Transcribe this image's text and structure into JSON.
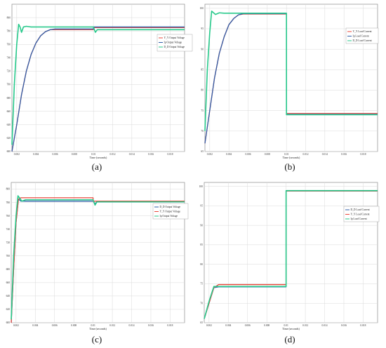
{
  "captions": [
    "(a)",
    "(b)",
    "(c)",
    "(d)"
  ],
  "colors": {
    "red": "#e8473a",
    "blue": "#2f5ea8",
    "green": "#27c98b",
    "teal": "#4fb3b0"
  },
  "chart_data": [
    {
      "type": "line",
      "panel": "a",
      "xlabel": "Time (seconds)",
      "ylabel": "",
      "xlim": [
        0.0015,
        0.0195
      ],
      "ylim": [
        600,
        820
      ],
      "xticks": [
        0.002,
        0.004,
        0.006,
        0.008,
        0.01,
        0.012,
        0.014,
        0.016,
        0.018
      ],
      "xtick_labels": [
        "0.002",
        "0.004",
        "0.006",
        "0.008",
        "0.01",
        "0.012",
        "0.014",
        "0.016",
        "0.018"
      ],
      "yticks": [
        600,
        620,
        640,
        660,
        680,
        700,
        720,
        740,
        760,
        780,
        800
      ],
      "ytick_labels": [
        "600",
        "620",
        "640",
        "660",
        "680",
        "700",
        "720",
        "740",
        "760",
        "780",
        "800"
      ],
      "grid": true,
      "legend": "right",
      "series": [
        {
          "name": "Y_Y Output Voltage",
          "color": "red",
          "x": [
            0.0015,
            0.002,
            0.0025,
            0.003,
            0.0035,
            0.004,
            0.0045,
            0.005,
            0.0055,
            0.006,
            0.0065,
            0.01,
            0.01,
            0.0195
          ],
          "y": [
            600,
            640,
            685,
            720,
            745,
            762,
            773,
            779,
            782,
            782,
            782,
            782,
            785,
            785
          ]
        },
        {
          "name": "Ip Output Voltage",
          "color": "blue",
          "x": [
            0.0015,
            0.002,
            0.0025,
            0.003,
            0.0035,
            0.004,
            0.0045,
            0.005,
            0.0055,
            0.006,
            0.0065,
            0.01,
            0.01,
            0.0195
          ],
          "y": [
            600,
            640,
            685,
            720,
            745,
            762,
            773,
            779,
            782,
            783,
            783,
            783,
            786,
            786
          ]
        },
        {
          "name": "D_D Output Voltage",
          "color": "green",
          "x": [
            0.0015,
            0.00175,
            0.002,
            0.0022,
            0.00235,
            0.0025,
            0.0027,
            0.003,
            0.0035,
            0.004,
            0.006,
            0.01,
            0.0102,
            0.0104,
            0.0195
          ],
          "y": [
            610,
            700,
            760,
            790,
            786,
            778,
            786,
            787,
            786,
            786,
            786,
            786,
            778,
            782,
            782
          ]
        }
      ]
    },
    {
      "type": "line",
      "panel": "b",
      "xlabel": "Time (seconds)",
      "ylabel": "",
      "xlim": [
        0.0015,
        0.0195
      ],
      "ylim": [
        65,
        101
      ],
      "xticks": [
        0.002,
        0.004,
        0.006,
        0.008,
        0.01,
        0.012,
        0.014,
        0.016,
        0.018
      ],
      "xtick_labels": [
        "0.002",
        "0.004",
        "0.006",
        "0.008",
        "0.01",
        "0.012",
        "0.014",
        "0.016",
        "0.018"
      ],
      "yticks": [
        65,
        70,
        75,
        80,
        85,
        90,
        95,
        100
      ],
      "ytick_labels": [
        "65",
        "70",
        "75",
        "80",
        "85",
        "90",
        "95",
        "100"
      ],
      "grid": true,
      "legend": "right",
      "series": [
        {
          "name": "Y_Y Load Current",
          "color": "red",
          "x": [
            0.0015,
            0.002,
            0.0025,
            0.003,
            0.0035,
            0.004,
            0.0045,
            0.005,
            0.0055,
            0.01,
            0.01,
            0.0195
          ],
          "y": [
            67,
            75,
            83,
            89,
            93,
            96,
            97.5,
            98.4,
            98.6,
            98.6,
            74.3,
            74.3
          ]
        },
        {
          "name": "Ip Load Current",
          "color": "blue",
          "x": [
            0.0015,
            0.002,
            0.0025,
            0.003,
            0.0035,
            0.004,
            0.0045,
            0.005,
            0.0055,
            0.01,
            0.01,
            0.0195
          ],
          "y": [
            67,
            75,
            83,
            89,
            93,
            96,
            97.5,
            98.4,
            98.7,
            98.7,
            74.1,
            74.1
          ]
        },
        {
          "name": "D_D Load Current",
          "color": "green",
          "x": [
            0.0015,
            0.00175,
            0.002,
            0.0022,
            0.0024,
            0.0026,
            0.003,
            0.0035,
            0.01,
            0.01,
            0.0195
          ],
          "y": [
            70,
            85,
            94,
            99.3,
            98.9,
            98.5,
            98.9,
            98.8,
            98.8,
            74.0,
            74.0
          ]
        }
      ]
    },
    {
      "type": "line",
      "panel": "c",
      "xlabel": "Time (seconds)",
      "ylabel": "",
      "xlim": [
        0.0015,
        0.0195
      ],
      "ylim": [
        600,
        810
      ],
      "xticks": [
        0.002,
        0.004,
        0.006,
        0.008,
        0.01,
        0.012,
        0.014,
        0.016,
        0.018
      ],
      "xtick_labels": [
        "0.002",
        "0.004",
        "0.006",
        "0.008",
        "0.01",
        "0.012",
        "0.014",
        "0.016",
        "0.018"
      ],
      "yticks": [
        600,
        620,
        640,
        660,
        680,
        700,
        720,
        740,
        760,
        780,
        800
      ],
      "ytick_labels": [
        "600",
        "620",
        "640",
        "660",
        "680",
        "700",
        "720",
        "740",
        "760",
        "780",
        "800"
      ],
      "grid": true,
      "legend": "right",
      "series": [
        {
          "name": "D_D Output Voltage",
          "color": "blue",
          "x": [
            0.0015,
            0.00175,
            0.002,
            0.00225,
            0.0025,
            0.01,
            0.0102,
            0.0104,
            0.0195
          ],
          "y": [
            600,
            680,
            750,
            785,
            782,
            782,
            778,
            781,
            781
          ]
        },
        {
          "name": "Y_Y Output Voltage",
          "color": "red",
          "x": [
            0.0015,
            0.00175,
            0.002,
            0.00225,
            0.0025,
            0.01,
            0.01,
            0.0195
          ],
          "y": [
            600,
            680,
            750,
            785,
            787,
            787,
            782,
            782
          ]
        },
        {
          "name": "Ip Output Voltage",
          "color": "green",
          "x": [
            0.0015,
            0.00175,
            0.002,
            0.0022,
            0.0024,
            0.0026,
            0.003,
            0.01,
            0.0102,
            0.0104,
            0.0195
          ],
          "y": [
            605,
            700,
            760,
            790,
            786,
            782,
            784,
            784,
            776,
            781,
            781
          ]
        }
      ]
    },
    {
      "type": "line",
      "panel": "d",
      "xlabel": "Time (seconds)",
      "ylabel": "",
      "xlim": [
        0.0015,
        0.0195
      ],
      "ylim": [
        65,
        101
      ],
      "xticks": [
        0.002,
        0.004,
        0.006,
        0.008,
        0.01,
        0.012,
        0.014,
        0.016,
        0.018
      ],
      "xtick_labels": [
        "0.002",
        "0.004",
        "0.006",
        "0.008",
        "0.01",
        "0.012",
        "0.014",
        "0.016",
        "0.018"
      ],
      "yticks": [
        65,
        70,
        75,
        80,
        85,
        90,
        95,
        100
      ],
      "ytick_labels": [
        "65",
        "70",
        "75",
        "80",
        "85",
        "90",
        "95",
        "100"
      ],
      "grid": true,
      "legend": "right",
      "series": [
        {
          "name": "D_D Load Current",
          "color": "blue",
          "x": [
            0.0015,
            0.002,
            0.0025,
            0.003,
            0.01,
            0.01,
            0.0195
          ],
          "y": [
            66,
            70,
            74,
            74.2,
            74.2,
            98.8,
            98.8
          ]
        },
        {
          "name": "Y_Y Load Current",
          "color": "red",
          "x": [
            0.0015,
            0.002,
            0.0025,
            0.003,
            0.01,
            0.01,
            0.0195
          ],
          "y": [
            66,
            70,
            74,
            74.8,
            74.8,
            98.8,
            98.8
          ]
        },
        {
          "name": "Ip Load Current",
          "color": "green",
          "x": [
            0.0015,
            0.002,
            0.0025,
            0.003,
            0.01,
            0.01,
            0.0195
          ],
          "y": [
            66,
            70.5,
            74.3,
            74.3,
            74.3,
            98.9,
            98.9
          ]
        }
      ]
    }
  ]
}
